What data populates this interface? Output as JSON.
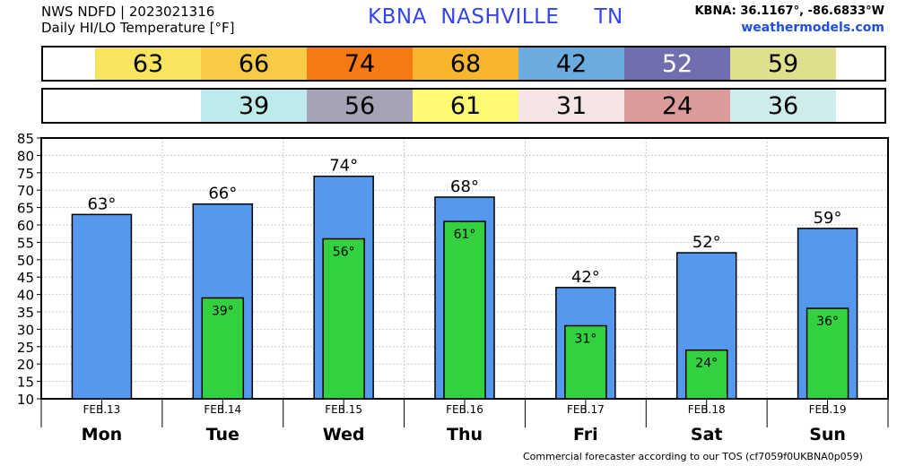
{
  "header": {
    "line1": "NWS NDFD | 2023021316",
    "line2": "Daily HI/LO Temperature [°F]",
    "location_title": "KBNA  NASHVILLE     TN",
    "coords": "KBNA: 36.1167°, -86.6833°W",
    "site": "weathermodels.com"
  },
  "hi_strip": [
    {
      "value": "63",
      "color": "#f9e45f",
      "text_color": "#000000"
    },
    {
      "value": "66",
      "color": "#f8cb46",
      "text_color": "#000000"
    },
    {
      "value": "74",
      "color": "#f57a12",
      "text_color": "#000000"
    },
    {
      "value": "68",
      "color": "#f8b62f",
      "text_color": "#000000"
    },
    {
      "value": "42",
      "color": "#6aacdf",
      "text_color": "#000000"
    },
    {
      "value": "52",
      "color": "#6f6fb0",
      "text_color": "#ffffff"
    },
    {
      "value": "59",
      "color": "#e0df8b",
      "text_color": "#000000"
    }
  ],
  "lo_strip": [
    {
      "value": "",
      "color": "#ffffff",
      "text_color": "#000000"
    },
    {
      "value": "39",
      "color": "#bdeaeb",
      "text_color": "#000000"
    },
    {
      "value": "56",
      "color": "#a6a3b5",
      "text_color": "#000000"
    },
    {
      "value": "61",
      "color": "#fdfb72",
      "text_color": "#000000"
    },
    {
      "value": "31",
      "color": "#f6e5e5",
      "text_color": "#000000"
    },
    {
      "value": "24",
      "color": "#dc9b9b",
      "text_color": "#000000"
    },
    {
      "value": "36",
      "color": "#ceeceb",
      "text_color": "#000000"
    }
  ],
  "chart_data": {
    "type": "bar",
    "categories": [
      "Mon",
      "Tue",
      "Wed",
      "Thu",
      "Fri",
      "Sat",
      "Sun"
    ],
    "dates": [
      "FEB.13",
      "FEB.14",
      "FEB.15",
      "FEB.16",
      "FEB.17",
      "FEB.18",
      "FEB.19"
    ],
    "series": [
      {
        "values": [
          63,
          66,
          74,
          68,
          42,
          52,
          59
        ],
        "color": "#5599ee"
      },
      {
        "values": [
          null,
          39,
          56,
          61,
          31,
          24,
          36
        ],
        "color": "#33d040"
      }
    ],
    "ylim": [
      10,
      85
    ],
    "yticks": [
      10,
      15,
      20,
      25,
      30,
      35,
      40,
      45,
      50,
      55,
      60,
      65,
      70,
      75,
      80,
      85
    ],
    "grid": true,
    "degree_symbol": "°"
  },
  "footer": "Commercial forecaster according to our TOS (cf7059f0UKBNA0p059)"
}
